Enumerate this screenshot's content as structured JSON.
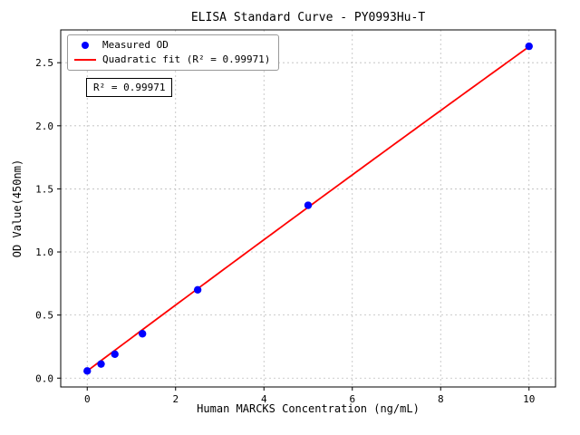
{
  "chart_data": {
    "type": "scatter",
    "title": "ELISA Standard Curve - PY0993Hu-T",
    "xlabel": "Human MARCKS Concentration (ng/mL)",
    "ylabel": "OD Value(450nm)",
    "xlim": [
      -0.6,
      10.6
    ],
    "ylim": [
      -0.07,
      2.76
    ],
    "xticks": [
      0,
      2,
      4,
      6,
      8,
      10
    ],
    "xtick_labels": [
      "0",
      "2",
      "4",
      "6",
      "8",
      "10"
    ],
    "yticks": [
      0,
      0.5,
      1.0,
      1.5,
      2.0,
      2.5
    ],
    "ytick_labels": [
      "0.0",
      "0.5",
      "1.0",
      "1.5",
      "2.0",
      "2.5"
    ],
    "grid": true,
    "series": [
      {
        "name": "Measured OD",
        "type": "scatter",
        "color": "#0000ff",
        "x": [
          0,
          0.313,
          0.625,
          1.25,
          2.5,
          5,
          10
        ],
        "y": [
          0.057,
          0.112,
          0.19,
          0.352,
          0.7,
          1.37,
          2.63
        ]
      },
      {
        "name": "Quadratic fit (R² = 0.99971)",
        "type": "line",
        "color": "#ff0000",
        "fit": {
          "kind": "quadratic",
          "coefficients": [
            -0.0005,
            0.262,
            0.057
          ],
          "x_range": [
            0,
            10
          ]
        }
      }
    ],
    "legend": {
      "position": "upper left",
      "entries": [
        "Measured OD",
        "Quadratic fit (R² = 0.99971)"
      ]
    },
    "annotation": "R² = 0.99971"
  }
}
